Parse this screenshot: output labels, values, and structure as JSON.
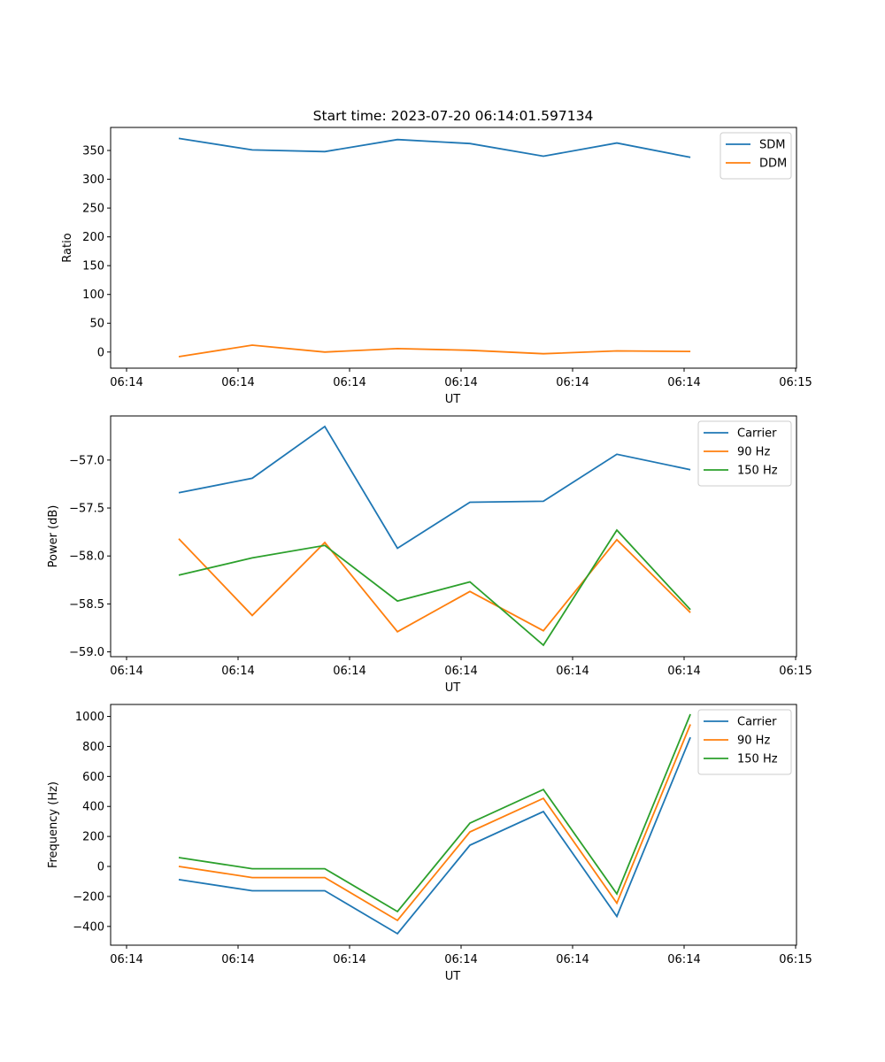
{
  "chart_data": [
    {
      "type": "line",
      "title": "Start time: 2023-07-20 06:14:01.597134",
      "xlabel": "UT",
      "ylabel": "Ratio",
      "x_unit": "seconds after 06:14:00",
      "xlim": [
        0,
        60
      ],
      "x_ticks": [
        0,
        10,
        20,
        30,
        40,
        50,
        60
      ],
      "x_tick_labels": [
        "06:14",
        "06:14",
        "06:14",
        "06:14",
        "06:14",
        "06:14",
        "06:15"
      ],
      "ylim": [
        -28,
        390
      ],
      "y_ticks": [
        0,
        50,
        100,
        150,
        200,
        250,
        300,
        350
      ],
      "y_tick_labels": [
        "0",
        "50",
        "100",
        "150",
        "200",
        "250",
        "300",
        "350"
      ],
      "x": [
        4.68,
        11.27,
        17.78,
        24.29,
        30.79,
        37.38,
        43.97,
        50.56
      ],
      "series": [
        {
          "name": "SDM",
          "color": "#1f77b4",
          "values": [
            371,
            351,
            348,
            369,
            362,
            340,
            363,
            338
          ]
        },
        {
          "name": "DDM",
          "color": "#ff7f0e",
          "values": [
            -8,
            12,
            0,
            6,
            3,
            -3,
            2,
            1
          ]
        }
      ],
      "legend": "top-right",
      "grid": false
    },
    {
      "type": "line",
      "title": "",
      "xlabel": "UT",
      "ylabel": "Power (dB)",
      "x_unit": "seconds after 06:14:00",
      "xlim": [
        0,
        60
      ],
      "x_ticks": [
        0,
        10,
        20,
        30,
        40,
        50,
        60
      ],
      "x_tick_labels": [
        "06:14",
        "06:14",
        "06:14",
        "06:14",
        "06:14",
        "06:14",
        "06:15"
      ],
      "ylim": [
        -59.05,
        -56.54
      ],
      "y_ticks": [
        -57.0,
        -57.5,
        -58.0,
        -58.5,
        -59.0
      ],
      "y_tick_labels": [
        "−57.0",
        "−57.5",
        "−58.0",
        "−58.5",
        "−59.0"
      ],
      "x": [
        4.68,
        11.27,
        17.78,
        24.29,
        30.79,
        37.38,
        43.97,
        50.56
      ],
      "series": [
        {
          "name": "Carrier",
          "color": "#1f77b4",
          "values": [
            -57.34,
            -57.19,
            -56.65,
            -57.92,
            -57.44,
            -57.43,
            -56.94,
            -57.1
          ]
        },
        {
          "name": "90 Hz",
          "color": "#ff7f0e",
          "values": [
            -57.82,
            -58.62,
            -57.86,
            -58.79,
            -58.37,
            -58.78,
            -57.83,
            -58.59
          ]
        },
        {
          "name": "150 Hz",
          "color": "#2ca02c",
          "values": [
            -58.2,
            -58.02,
            -57.89,
            -58.47,
            -58.27,
            -58.93,
            -57.73,
            -58.56
          ]
        }
      ],
      "legend": "top-right",
      "grid": false
    },
    {
      "type": "line",
      "title": "",
      "xlabel": "UT",
      "ylabel": "Frequency (Hz)",
      "x_unit": "seconds after 06:14:00",
      "xlim": [
        0,
        60
      ],
      "x_ticks": [
        0,
        10,
        20,
        30,
        40,
        50,
        60
      ],
      "x_tick_labels": [
        "06:14",
        "06:14",
        "06:14",
        "06:14",
        "06:14",
        "06:14",
        "06:15"
      ],
      "ylim": [
        -525,
        1080
      ],
      "y_ticks": [
        -400,
        -200,
        0,
        200,
        400,
        600,
        800,
        1000
      ],
      "y_tick_labels": [
        "−400",
        "−200",
        "0",
        "200",
        "400",
        "600",
        "800",
        "1000"
      ],
      "x": [
        4.68,
        11.27,
        17.78,
        24.29,
        30.79,
        37.38,
        43.97,
        50.56
      ],
      "series": [
        {
          "name": "Carrier",
          "color": "#1f77b4",
          "values": [
            -88,
            -162,
            -162,
            -448,
            142,
            366,
            -333,
            861
          ]
        },
        {
          "name": "90 Hz",
          "color": "#ff7f0e",
          "values": [
            0,
            -74,
            -74,
            -360,
            230,
            454,
            -245,
            947
          ]
        },
        {
          "name": "150 Hz",
          "color": "#2ca02c",
          "values": [
            59,
            -15,
            -15,
            -301,
            289,
            513,
            -183,
            1015
          ]
        }
      ],
      "legend": "top-right",
      "grid": false
    }
  ]
}
